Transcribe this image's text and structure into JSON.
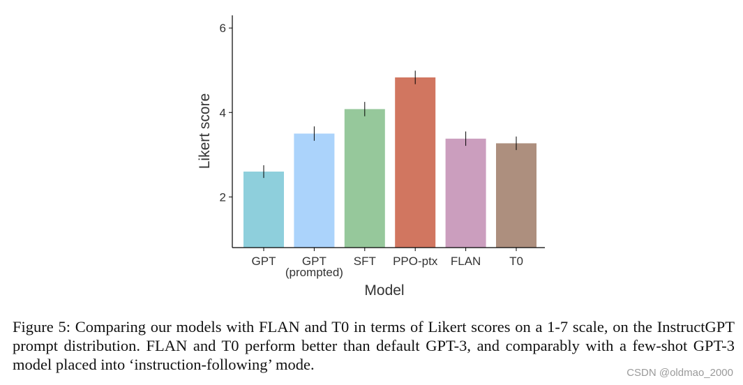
{
  "chart_data": {
    "type": "bar",
    "categories": [
      "GPT",
      "GPT",
      "SFT",
      "PPO-ptx",
      "FLAN",
      "T0"
    ],
    "category_sublabels": [
      "",
      "(prompted)",
      "",
      "",
      "",
      ""
    ],
    "values": [
      2.6,
      3.5,
      4.08,
      4.83,
      3.38,
      3.27
    ],
    "error": [
      0.15,
      0.17,
      0.17,
      0.16,
      0.17,
      0.16
    ],
    "colors": [
      "#8ecfdc",
      "#abd3fb",
      "#96c89b",
      "#d17660",
      "#cb9ebe",
      "#ad8f7e"
    ],
    "xlabel": "Model",
    "ylabel": "Likert score",
    "yticks": [
      2,
      4,
      6
    ],
    "ylim": [
      0.8,
      6.3
    ]
  },
  "caption": "Figure 5: Comparing our models with FLAN and T0 in terms of Likert scores on a 1-7 scale, on the InstructGPT prompt distribution. FLAN and T0 perform better than default GPT-3, and comparably with a few-shot GPT-3 model placed into ‘instruction-following’ mode.",
  "watermark": "CSDN @oldmao_2000"
}
